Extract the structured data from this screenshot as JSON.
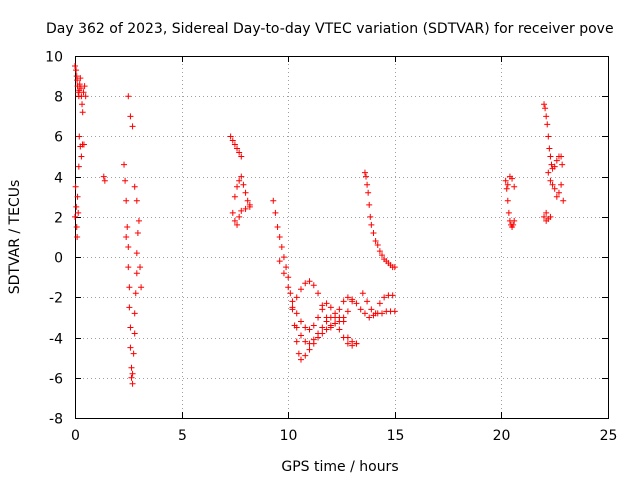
{
  "chart_data": {
    "type": "scatter",
    "title": "Day 362 of 2023, Sidereal Day-to-day VTEC variation (SDTVAR) for receiver pove",
    "xlabel": "GPS time / hours",
    "ylabel": "SDTVAR / TECUs",
    "xlim": [
      0,
      25
    ],
    "ylim": [
      -8,
      10
    ],
    "xticks": [
      "0",
      "5",
      "10",
      "15",
      "20",
      "25"
    ],
    "yticks": [
      "-8",
      "-6",
      "-4",
      "-2",
      "0",
      "2",
      "4",
      "6",
      "8",
      "10"
    ],
    "grid": true,
    "marker": "+",
    "color": "#ff0000",
    "series": [
      {
        "name": "SDTVAR",
        "x": [
          0.0,
          0.05,
          0.08,
          0.1,
          0.12,
          0.15,
          0.18,
          0.2,
          0.22,
          0.25,
          0.28,
          0.3,
          0.33,
          0.36,
          0.4,
          0.45,
          0.5,
          0.0,
          0.03,
          0.06,
          0.08,
          0.1,
          0.12,
          0.15,
          0.18,
          0.2,
          0.25,
          0.3,
          0.35,
          0.42,
          1.35,
          1.4,
          2.3,
          2.35,
          2.4,
          2.45,
          2.5,
          2.5,
          2.55,
          2.55,
          2.6,
          2.6,
          2.65,
          2.65,
          2.7,
          2.7,
          2.75,
          2.8,
          2.8,
          2.85,
          2.9,
          2.9,
          2.95,
          3.0,
          3.05,
          3.1,
          2.4,
          2.5,
          2.6,
          2.7,
          2.8,
          2.9,
          7.3,
          7.4,
          7.5,
          7.6,
          7.7,
          7.8,
          7.5,
          7.6,
          7.7,
          7.8,
          7.9,
          8.0,
          8.1,
          8.2,
          7.4,
          7.5,
          7.6,
          7.7,
          7.8,
          8.0,
          8.2,
          9.3,
          9.4,
          9.5,
          9.6,
          9.7,
          9.8,
          9.9,
          10.0,
          10.1,
          10.2,
          10.3,
          10.4,
          10.5,
          10.6,
          10.8,
          11.0,
          11.2,
          11.4,
          11.6,
          11.8,
          12.0,
          12.2,
          12.4,
          12.6,
          12.8,
          13.0,
          13.2,
          9.6,
          9.8,
          10.0,
          10.2,
          10.4,
          10.6,
          10.8,
          11.0,
          11.2,
          11.4,
          11.6,
          11.8,
          12.0,
          12.2,
          12.4,
          12.6,
          12.8,
          13.0,
          10.2,
          10.4,
          10.6,
          10.8,
          11.0,
          11.2,
          11.4,
          11.6,
          11.8,
          12.0,
          12.2,
          12.4,
          12.6,
          12.8,
          13.0,
          13.2,
          10.4,
          10.6,
          10.8,
          11.0,
          11.2,
          11.4,
          11.6,
          11.8,
          12.0,
          12.2,
          12.4,
          12.6,
          12.8,
          13.0,
          13.2,
          13.6,
          13.65,
          13.7,
          13.75,
          13.8,
          13.85,
          13.9,
          14.0,
          14.1,
          14.2,
          14.3,
          14.4,
          14.5,
          14.6,
          14.7,
          14.8,
          14.9,
          15.0,
          13.4,
          13.6,
          13.8,
          14.0,
          14.2,
          14.4,
          14.6,
          14.8,
          15.0,
          13.5,
          13.7,
          13.9,
          14.1,
          14.3,
          14.5,
          14.7,
          14.9,
          20.2,
          20.25,
          20.3,
          20.35,
          20.4,
          20.45,
          20.5,
          20.55,
          20.6,
          20.3,
          20.4,
          20.5,
          20.6,
          22.0,
          22.05,
          22.1,
          22.15,
          22.2,
          22.25,
          22.3,
          22.35,
          22.4,
          22.5,
          22.6,
          22.7,
          22.8,
          22.85,
          22.0,
          22.1,
          22.2,
          22.3,
          22.4,
          22.5,
          22.6,
          22.7,
          22.8,
          22.9,
          22.1,
          22.2,
          22.3
        ],
        "y": [
          9.5,
          9.3,
          9.0,
          8.8,
          8.5,
          8.2,
          8.0,
          8.3,
          8.6,
          8.9,
          8.4,
          8.0,
          7.6,
          7.2,
          8.2,
          8.5,
          8.0,
          2.0,
          3.5,
          2.5,
          1.5,
          1.0,
          3.0,
          2.2,
          4.5,
          6.0,
          5.5,
          5.0,
          5.6,
          5.6,
          4.0,
          3.8,
          4.6,
          3.8,
          2.8,
          1.5,
          0.5,
          -0.5,
          -1.5,
          -2.5,
          -3.5,
          -4.5,
          -5.5,
          -6.0,
          -6.3,
          -5.8,
          -4.8,
          -3.8,
          -2.8,
          -1.8,
          -0.8,
          0.2,
          1.2,
          1.8,
          -0.5,
          -1.5,
          1.0,
          8.0,
          7.0,
          6.5,
          3.5,
          2.8,
          6.0,
          5.8,
          5.6,
          5.4,
          5.2,
          5.0,
          3.0,
          3.5,
          3.8,
          4.0,
          3.6,
          3.2,
          2.8,
          2.5,
          2.2,
          1.8,
          1.6,
          2.0,
          2.3,
          2.4,
          2.6,
          2.8,
          2.2,
          1.5,
          1.0,
          0.5,
          0.0,
          -0.5,
          -1.0,
          -1.8,
          -2.6,
          -3.4,
          -4.2,
          -4.8,
          -5.1,
          -4.9,
          -4.6,
          -4.3,
          -4.0,
          -3.8,
          -3.6,
          -3.5,
          -3.3,
          -3.2,
          -3.0,
          -4.0,
          -4.2,
          -4.3,
          -0.2,
          -0.8,
          -1.5,
          -2.2,
          -2.8,
          -3.2,
          -3.5,
          -3.6,
          -3.4,
          -3.0,
          -2.6,
          -2.3,
          -2.5,
          -2.8,
          -3.0,
          -3.2,
          -2.7,
          -2.2,
          -2.5,
          -2.0,
          -1.6,
          -1.3,
          -1.2,
          -1.4,
          -1.8,
          -2.4,
          -3.0,
          -3.4,
          -3.0,
          -2.6,
          -2.2,
          -2.0,
          -2.1,
          -2.3,
          -3.5,
          -3.9,
          -4.2,
          -4.3,
          -4.1,
          -3.8,
          -3.5,
          -3.2,
          -3.0,
          -3.3,
          -3.6,
          -4.0,
          -4.3,
          -4.4,
          -4.3,
          4.2,
          4.0,
          3.6,
          3.2,
          2.6,
          2.0,
          1.6,
          1.2,
          0.8,
          0.6,
          0.3,
          0.1,
          -0.1,
          -0.2,
          -0.3,
          -0.4,
          -0.5,
          -0.5,
          -2.6,
          -2.8,
          -3.0,
          -2.9,
          -2.8,
          -2.8,
          -2.7,
          -2.7,
          -2.7,
          -1.8,
          -2.2,
          -2.6,
          -2.8,
          -2.3,
          -2.0,
          -1.9,
          -1.9,
          3.8,
          3.4,
          2.8,
          2.2,
          1.8,
          1.6,
          1.5,
          1.6,
          1.8,
          3.6,
          4.0,
          3.9,
          3.5,
          7.6,
          7.4,
          7.0,
          6.6,
          6.0,
          5.4,
          5.0,
          4.6,
          4.4,
          4.5,
          4.8,
          5.0,
          5.0,
          4.6,
          2.0,
          2.2,
          4.2,
          3.8,
          3.6,
          3.4,
          3.0,
          3.2,
          3.6,
          2.8,
          1.8,
          1.9,
          2.0
        ]
      }
    ]
  }
}
